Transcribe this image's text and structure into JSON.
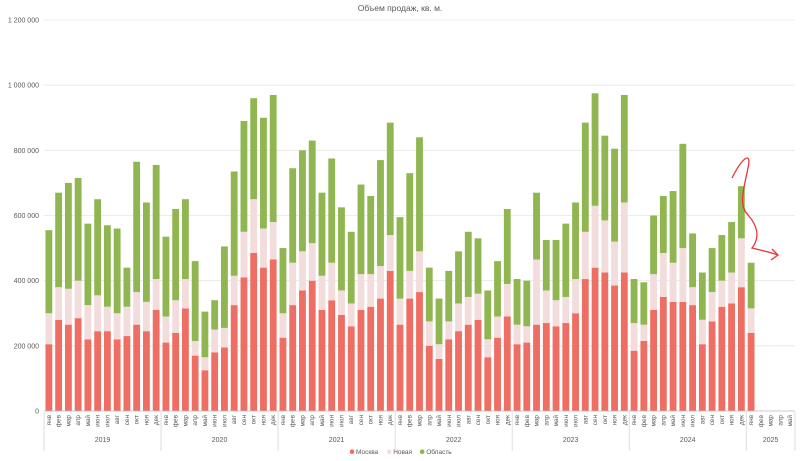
{
  "chart_data": {
    "type": "bar",
    "stacked": true,
    "title": "Объем продаж, кв. м.",
    "xlabel": "",
    "ylabel": "",
    "ylim": [
      0,
      1200000
    ],
    "yticks": [
      "0",
      "200 000",
      "400 000",
      "600 000",
      "800 000",
      "1 000 000",
      "1 200 000"
    ],
    "month_labels": [
      "янв",
      "фев",
      "мар",
      "апр",
      "май",
      "июн",
      "июл",
      "авг",
      "сен",
      "окт",
      "ноя",
      "дек"
    ],
    "years": [
      "2019",
      "2020",
      "2021",
      "2022",
      "2023",
      "2024",
      "2025"
    ],
    "grid": true,
    "legend_position": "bottom",
    "series": [
      {
        "name": "Москва",
        "color": "#ee6e63",
        "values": [
          205000,
          280000,
          265000,
          285000,
          220000,
          245000,
          245000,
          220000,
          230000,
          265000,
          245000,
          310000,
          210000,
          240000,
          315000,
          170000,
          125000,
          180000,
          195000,
          325000,
          410000,
          485000,
          440000,
          465000,
          225000,
          325000,
          370000,
          400000,
          310000,
          340000,
          295000,
          260000,
          310000,
          320000,
          345000,
          430000,
          265000,
          345000,
          365000,
          200000,
          160000,
          220000,
          245000,
          265000,
          280000,
          165000,
          225000,
          290000,
          205000,
          210000,
          265000,
          270000,
          260000,
          270000,
          300000,
          405000,
          440000,
          425000,
          385000,
          425000,
          185000,
          215000,
          310000,
          350000,
          335000,
          335000,
          325000,
          205000,
          275000,
          320000,
          330000,
          380000,
          240000,
          0,
          0,
          0,
          0
        ]
      },
      {
        "name": "Новая",
        "color": "#f3dcdc",
        "values": [
          95000,
          100000,
          110000,
          115000,
          105000,
          110000,
          75000,
          80000,
          90000,
          100000,
          90000,
          95000,
          80000,
          100000,
          90000,
          45000,
          40000,
          70000,
          60000,
          90000,
          140000,
          165000,
          120000,
          115000,
          75000,
          130000,
          120000,
          115000,
          105000,
          115000,
          75000,
          70000,
          110000,
          100000,
          100000,
          110000,
          80000,
          85000,
          125000,
          75000,
          45000,
          55000,
          85000,
          85000,
          80000,
          55000,
          65000,
          100000,
          60000,
          50000,
          200000,
          100000,
          80000,
          80000,
          105000,
          145000,
          190000,
          160000,
          135000,
          215000,
          85000,
          50000,
          110000,
          135000,
          120000,
          165000,
          55000,
          75000,
          90000,
          80000,
          95000,
          150000,
          75000,
          0,
          0,
          0,
          0
        ]
      },
      {
        "name": "Область",
        "color": "#8fb650",
        "values": [
          255000,
          290000,
          325000,
          315000,
          250000,
          295000,
          250000,
          260000,
          120000,
          400000,
          305000,
          350000,
          245000,
          280000,
          245000,
          245000,
          140000,
          90000,
          250000,
          320000,
          340000,
          310000,
          340000,
          390000,
          200000,
          290000,
          310000,
          315000,
          255000,
          320000,
          255000,
          220000,
          275000,
          240000,
          325000,
          345000,
          250000,
          300000,
          350000,
          165000,
          140000,
          155000,
          160000,
          200000,
          170000,
          150000,
          170000,
          230000,
          140000,
          140000,
          205000,
          155000,
          185000,
          225000,
          235000,
          335000,
          345000,
          260000,
          285000,
          330000,
          135000,
          130000,
          180000,
          175000,
          220000,
          320000,
          165000,
          145000,
          135000,
          140000,
          155000,
          160000,
          140000,
          0,
          0,
          0,
          0
        ]
      }
    ]
  }
}
